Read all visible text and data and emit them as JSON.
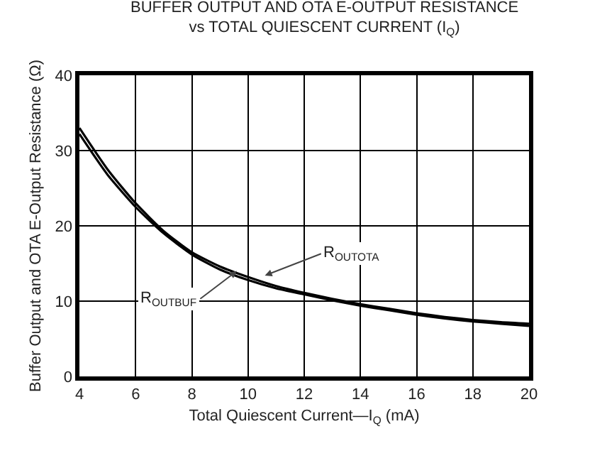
{
  "chart_data": {
    "type": "line",
    "title": "BUFFER OUTPUT AND OTA E-OUTPUT RESISTANCE",
    "subtitle": "vs TOTAL QUIESCENT CURRENT (I$_{Q}$)",
    "xlabel": "Total Quiescent Current—I$_{Q}$ (mA)",
    "ylabel": "Buffer Output and OTA E-Output Resistance (Ω)",
    "x": [
      4,
      5,
      6,
      7,
      8,
      9,
      10,
      11,
      12,
      13,
      14,
      15,
      16,
      17,
      18,
      19,
      20
    ],
    "series": [
      {
        "name": "R$_{OUTOTA}$",
        "color": "#000000",
        "values": [
          33,
          27.5,
          23,
          19.3,
          16.5,
          14.6,
          13.2,
          12,
          11.1,
          10.3,
          9.6,
          9,
          8.4,
          7.9,
          7.5,
          7.2,
          7.0
        ]
      },
      {
        "name": "R$_{OUTBUF}$",
        "color": "#000000",
        "values": [
          32.2,
          26.8,
          22.5,
          19,
          16.2,
          14.2,
          12.8,
          11.7,
          10.9,
          10.1,
          9.4,
          8.8,
          8.2,
          7.7,
          7.3,
          7.0,
          6.7
        ]
      }
    ],
    "xlim": [
      4,
      20
    ],
    "xticks": [
      4,
      6,
      8,
      10,
      12,
      14,
      16,
      18,
      20
    ],
    "ylim": [
      0,
      40
    ],
    "yticks": [
      0,
      10,
      20,
      30,
      40
    ],
    "grid": true,
    "legend": false,
    "marker": "none",
    "line_style": "solid"
  }
}
